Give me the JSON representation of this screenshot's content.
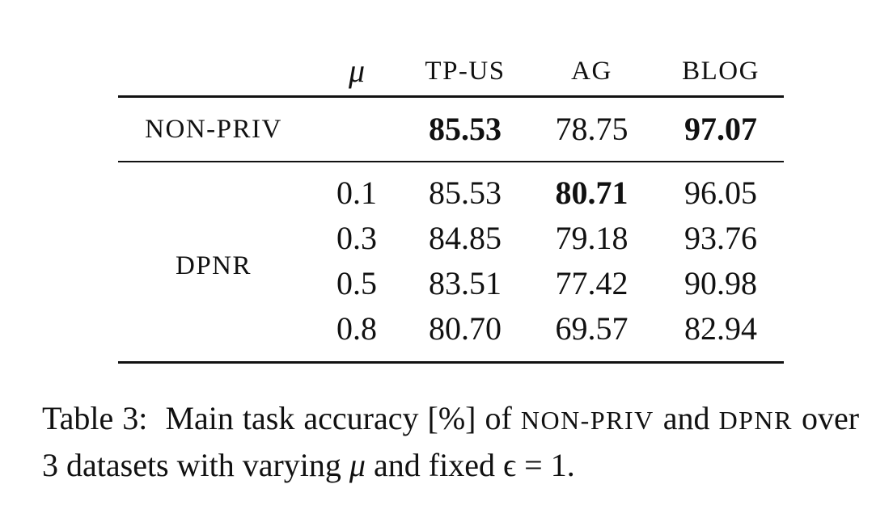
{
  "table": {
    "columns": [
      "",
      "μ",
      "TP-US",
      "AG",
      "BLOG"
    ],
    "non_priv": {
      "method": "NON-PRIV",
      "mu": "",
      "values": [
        "85.53",
        "78.75",
        "97.07"
      ],
      "bold": [
        true,
        false,
        true
      ]
    },
    "dpnr": {
      "method": "DPNR",
      "rows": [
        {
          "mu": "0.1",
          "values": [
            "85.53",
            "80.71",
            "96.05"
          ],
          "bold": [
            false,
            true,
            false
          ]
        },
        {
          "mu": "0.3",
          "values": [
            "84.85",
            "79.18",
            "93.76"
          ],
          "bold": [
            false,
            false,
            false
          ]
        },
        {
          "mu": "0.5",
          "values": [
            "83.51",
            "77.42",
            "90.98"
          ],
          "bold": [
            false,
            false,
            false
          ]
        },
        {
          "mu": "0.8",
          "values": [
            "80.70",
            "69.57",
            "82.94"
          ],
          "bold": [
            false,
            false,
            false
          ]
        }
      ]
    }
  },
  "caption": {
    "label": "Table 3:",
    "text_1": "Main task accuracy [%] of",
    "method_1": "NON-PRIV",
    "text_2": "and",
    "method_2": "DPNR",
    "text_3": "over 3 datasets with varying",
    "mu_symbol": "μ",
    "text_4": "and fixed",
    "epsilon_expr": "ϵ = 1."
  }
}
